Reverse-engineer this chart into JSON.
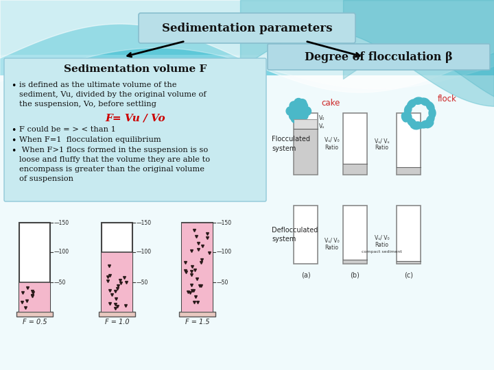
{
  "title": "Sedimentation parameters",
  "left_title": "Sedimentation volume F",
  "bullet1_line1": "is defined as the ultimate volume of the",
  "bullet1_line2": "sediment, Vu, divided by the original volume of",
  "bullet1_line3": "the suspension, Vo, before settling",
  "formula": "F= Vu / Vo",
  "bullet2": "F could be = > < than 1",
  "bullet3": "When F=1  flocculation equilibrium",
  "bullet4_line1": " When F>1 flocs formed in the suspension is so",
  "bullet4_line2": "loose and fluffy that the volume they are able to",
  "bullet4_line3": "encompass is greater than the original volume",
  "bullet4_line4": "of suspension",
  "right_title": "Degree of flocculation β",
  "cake_label": "cake",
  "flock_label": "flock",
  "flocc_sys": "Flocculated\nsystem",
  "deflocc_sys": "Deflocculated\nsystem",
  "label_a": "(a)",
  "label_b": "(b)",
  "label_c": "(c)",
  "bg_wave1": "#6bc8da",
  "bg_wave2": "#82d2e0",
  "bg_wave3": "#9ddce8",
  "bg_top": "#a8dde8",
  "bg_slide": "#daf0f5",
  "title_box_bg": "#b8dfe8",
  "left_box_bg": "#c8eaf0",
  "right_header_bg": "#b0dae6",
  "formula_color": "#cc0000",
  "text_color": "#111111",
  "teal": "#4ab8c8"
}
